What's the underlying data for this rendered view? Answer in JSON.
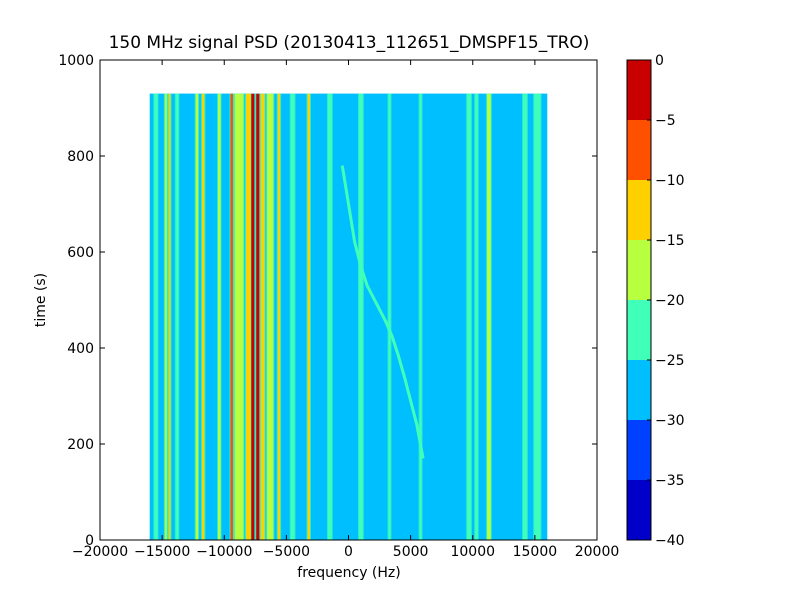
{
  "chart_data": [
    {
      "type": "heatmap",
      "title": "150 MHz signal PSD (20130413_112651_DMSPF15_TRO)",
      "xlabel": "frequency (Hz)",
      "ylabel": "time (s)",
      "xlim": [
        -20000,
        20000
      ],
      "ylim": [
        0,
        1000
      ],
      "xticks": [
        -20000,
        -15000,
        -10000,
        -5000,
        0,
        5000,
        10000,
        15000,
        20000
      ],
      "xtick_labels": [
        "−20000",
        "−15000",
        "−10000",
        "−5000",
        "0",
        "5000",
        "10000",
        "15000",
        "20000"
      ],
      "yticks": [
        0,
        200,
        400,
        600,
        800,
        1000
      ],
      "ytick_labels": [
        "0",
        "200",
        "400",
        "600",
        "800",
        "1000"
      ],
      "data_extent": {
        "x": [
          -16000,
          16000
        ],
        "y": [
          0,
          930
        ]
      },
      "background_level": -28,
      "vertical_lines": [
        {
          "freq": -15500,
          "level": -20,
          "width_hz": 250
        },
        {
          "freq": -14700,
          "level": -15,
          "width_hz": 150
        },
        {
          "freq": -14400,
          "level": -10,
          "width_hz": 150
        },
        {
          "freq": -13800,
          "level": -20,
          "width_hz": 200
        },
        {
          "freq": -12200,
          "level": -15,
          "width_hz": 200
        },
        {
          "freq": -11700,
          "level": -12,
          "width_hz": 200
        },
        {
          "freq": -10400,
          "level": -15,
          "width_hz": 200
        },
        {
          "freq": -9400,
          "level": -8,
          "width_hz": 200
        },
        {
          "freq": -8800,
          "level": -15,
          "width_hz": 700
        },
        {
          "freq": -8000,
          "level": -10,
          "width_hz": 500
        },
        {
          "freq": -7700,
          "level": -3,
          "width_hz": 250
        },
        {
          "freq": -7300,
          "level": -3,
          "width_hz": 250
        },
        {
          "freq": -6900,
          "level": -10,
          "width_hz": 300
        },
        {
          "freq": -6300,
          "level": -15,
          "width_hz": 500
        },
        {
          "freq": -5600,
          "level": -12,
          "width_hz": 200
        },
        {
          "freq": -4500,
          "level": -20,
          "width_hz": 300
        },
        {
          "freq": -3200,
          "level": -10,
          "width_hz": 200
        },
        {
          "freq": -1500,
          "level": -22,
          "width_hz": 300
        },
        {
          "freq": 1000,
          "level": -22,
          "width_hz": 300
        },
        {
          "freq": 3300,
          "level": -22,
          "width_hz": 150
        },
        {
          "freq": 5800,
          "level": -22,
          "width_hz": 150
        },
        {
          "freq": 9700,
          "level": -20,
          "width_hz": 300
        },
        {
          "freq": 10300,
          "level": -20,
          "width_hz": 200
        },
        {
          "freq": 11300,
          "level": -17,
          "width_hz": 300
        },
        {
          "freq": 14200,
          "level": -20,
          "width_hz": 300
        },
        {
          "freq": 15200,
          "level": -22,
          "width_hz": 500
        }
      ],
      "doppler_trace": {
        "level": -20,
        "points": [
          {
            "freq": -500,
            "time": 780
          },
          {
            "freq": 0,
            "time": 700
          },
          {
            "freq": 500,
            "time": 620
          },
          {
            "freq": 1000,
            "time": 570
          },
          {
            "freq": 1500,
            "time": 530
          },
          {
            "freq": 2000,
            "time": 505
          },
          {
            "freq": 2500,
            "time": 480
          },
          {
            "freq": 3000,
            "time": 455
          },
          {
            "freq": 3500,
            "time": 425
          },
          {
            "freq": 4000,
            "time": 385
          },
          {
            "freq": 4500,
            "time": 340
          },
          {
            "freq": 5000,
            "time": 290
          },
          {
            "freq": 5500,
            "time": 240
          },
          {
            "freq": 6000,
            "time": 170
          }
        ]
      }
    },
    {
      "type": "colorbar",
      "ticks": [
        0,
        -5,
        -10,
        -15,
        -20,
        -25,
        -30,
        -35,
        -40
      ],
      "tick_labels": [
        "0",
        "−5",
        "−10",
        "−15",
        "−20",
        "−25",
        "−30",
        "−35",
        "−40"
      ],
      "range": [
        -40,
        0
      ],
      "bins": [
        {
          "from": -40,
          "to": -35,
          "color": "#0000c8"
        },
        {
          "from": -35,
          "to": -30,
          "color": "#0040ff"
        },
        {
          "from": -30,
          "to": -25,
          "color": "#00bfff"
        },
        {
          "from": -25,
          "to": -20,
          "color": "#40ffb8"
        },
        {
          "from": -20,
          "to": -15,
          "color": "#b8ff40"
        },
        {
          "from": -15,
          "to": -10,
          "color": "#ffd000"
        },
        {
          "from": -10,
          "to": -5,
          "color": "#ff5000"
        },
        {
          "from": -5,
          "to": 0,
          "color": "#c80000"
        }
      ]
    }
  ]
}
